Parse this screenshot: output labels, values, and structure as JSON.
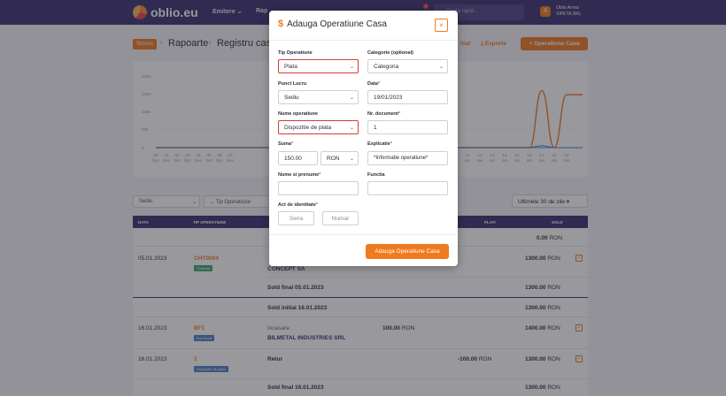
{
  "topbar": {
    "logo": "oblio.eu",
    "nav": [
      "Emitere ⌄",
      "Rap"
    ],
    "search_placeholder": "Cauta rapid...",
    "notif_count": "1",
    "user_initial": "A",
    "user_name": "Oblio Arrow",
    "user_company": "SIPETA SRL"
  },
  "breadcrumb": {
    "badge": "Stocuri",
    "items": [
      "Rapoarte",
      "Registru casa"
    ],
    "sep": "›"
  },
  "header_actions": {
    "sold_initial": "itial",
    "export": "Exporta",
    "add_button": "+ Operatiune Casa"
  },
  "chart_data": {
    "type": "line",
    "y_ticks": [
      "3000",
      "1000",
      "1000",
      "500",
      "0"
    ],
    "x_ticks_left": [
      "20",
      "21",
      "22",
      "23",
      "24",
      "25",
      "26",
      "27"
    ],
    "x_ticks_right": [
      "11",
      "12",
      "13",
      "14",
      "15",
      "16",
      "17",
      "18",
      "19"
    ],
    "x_month_left": [
      "Dec",
      "Dec",
      "Dec",
      "Dec",
      "Dec",
      "Dec",
      "Dec",
      "Dec"
    ],
    "x_month_right": [
      "Ian",
      "Ian",
      "Ian",
      "Ian",
      "Ian",
      "Ian",
      "Ian",
      "Ian",
      "Ian"
    ],
    "series": [
      {
        "color": "#f07a1e",
        "values": [
          0,
          0,
          0,
          0,
          0,
          0,
          1400,
          0,
          1300
        ]
      },
      {
        "color": "#3b7fd4",
        "values": [
          0,
          0,
          0,
          0,
          0,
          0,
          50,
          0,
          0
        ]
      }
    ],
    "grid": true
  },
  "filters": {
    "sediu": "Sediu",
    "tip": "Tip Operatiune",
    "period": "Ultimele 30 de zile ▾"
  },
  "table": {
    "headers": [
      "DATA",
      "TIP OPERATIUNE",
      "PLATI",
      "SOLD"
    ],
    "rows": [
      {
        "sold": "0.00",
        "currency": "RON"
      },
      {
        "date": "05.01.2023",
        "doc": "CHT0004",
        "tag": "Chitanta",
        "client": "CONCEPT SA",
        "sold": "1300.00",
        "currency": "RON"
      },
      {
        "label": "Sold final 05.01.2023",
        "sold": "1300.00",
        "currency": "RON"
      },
      {
        "label": "Sold initial 16.01.2023",
        "sold": "1300.00",
        "currency": "RON"
      },
      {
        "date": "16.01.2023",
        "doc": "BF1",
        "tag": "Bon fiscal",
        "op": "Incasare",
        "client": "BILMETAL INDUSTRIES SRL",
        "incasari": "100.00",
        "sold": "1400.00",
        "currency": "RON"
      },
      {
        "date": "16.01.2023",
        "doc": "1",
        "tag": "Dispozitie de plata",
        "op": "Retur",
        "plati": "-100.00",
        "sold": "1300.00",
        "currency": "RON"
      },
      {
        "label": "Sold final 16.01.2023",
        "sold": "1300.00",
        "currency": "RON"
      }
    ]
  },
  "modal": {
    "title": "Adauga Operatiune Casa",
    "close": "×",
    "fields": {
      "tip_operatiune": {
        "label": "Tip Operatiune",
        "value": "Plata"
      },
      "categorie": {
        "label": "Categorie (optional)",
        "value": "Categoria"
      },
      "punct_lucru": {
        "label": "Punct Lucru",
        "value": "Sediu"
      },
      "data": {
        "label": "Data",
        "value": "19/01/2023"
      },
      "nume_operatiune": {
        "label": "Nume operatiune",
        "value": "Dispozitie de plata"
      },
      "nr_document": {
        "label": "Nr. document",
        "value": "1"
      },
      "suma": {
        "label": "Suma",
        "value": "150.00",
        "currency": "RON"
      },
      "explicatie": {
        "label": "Explicatie",
        "value": "*Informatie operatiune*"
      },
      "nume_prenume": {
        "label": "Nume si prenume",
        "value": ""
      },
      "functia": {
        "label": "Functia",
        "value": ""
      },
      "act_identitate": {
        "label": "Act de identitate",
        "seria_placeholder": "Seria",
        "numar_placeholder": "Numar"
      }
    },
    "submit": "Adauga Operatiune Casa"
  },
  "colors": {
    "accent": "#f07a1e",
    "brand": "#3b2d6e",
    "highlight": "#d63a3a"
  }
}
